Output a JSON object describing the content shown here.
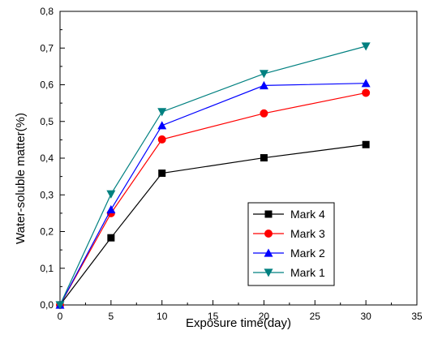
{
  "chart_data": {
    "type": "line",
    "xlabel": "Exposure time(day)",
    "ylabel": "Water-soluble matter(%)",
    "xlim": [
      0,
      35
    ],
    "ylim": [
      0.0,
      0.8
    ],
    "x_ticks": [
      "0",
      "5",
      "10",
      "15",
      "20",
      "25",
      "30",
      "35"
    ],
    "y_ticks": [
      "0,0",
      "0,1",
      "0,2",
      "0,3",
      "0,4",
      "0,5",
      "0,6",
      "0,7",
      "0,8"
    ],
    "grid": false,
    "legend_position": "lower-right",
    "x": [
      0,
      5,
      10,
      20,
      30
    ],
    "series": [
      {
        "name": "Mark 4",
        "values": [
          0.0,
          0.183,
          0.359,
          0.401,
          0.437
        ],
        "color": "#000000",
        "marker": "square"
      },
      {
        "name": "Mark 3",
        "values": [
          0.0,
          0.25,
          0.451,
          0.522,
          0.578
        ],
        "color": "#ff0000",
        "marker": "circle"
      },
      {
        "name": "Mark 2",
        "values": [
          0.0,
          0.26,
          0.489,
          0.598,
          0.604
        ],
        "color": "#0000ff",
        "marker": "triangle-up"
      },
      {
        "name": "Mark 1",
        "values": [
          0.0,
          0.302,
          0.526,
          0.63,
          0.705
        ],
        "color": "#008080",
        "marker": "triangle-down"
      }
    ]
  }
}
